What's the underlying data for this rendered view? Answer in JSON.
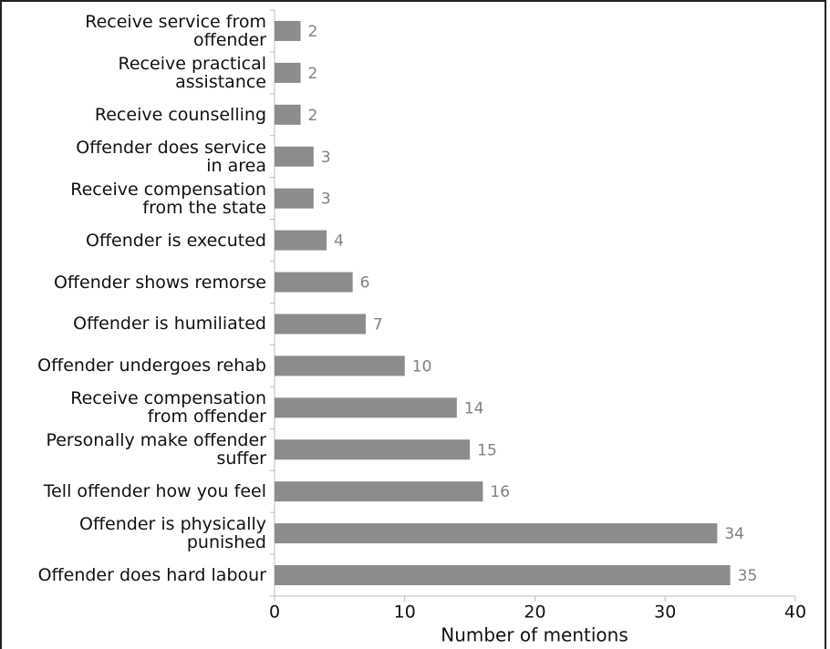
{
  "chart_data": {
    "type": "bar",
    "orientation": "horizontal",
    "categories": [
      "Receive service from\noffender",
      "Receive practical\nassistance",
      "Receive counselling",
      "Offender does service\nin area",
      "Receive compensation\nfrom the state",
      "Offender is executed",
      "Offender shows remorse",
      "Offender is humiliated",
      "Offender undergoes rehab",
      "Receive compensation\nfrom offender",
      "Personally make offender\nsuffer",
      "Tell offender how you feel",
      "Offender is physically\npunished",
      "Offender does hard labour"
    ],
    "values": [
      2,
      2,
      2,
      3,
      3,
      4,
      6,
      7,
      10,
      14,
      15,
      16,
      34,
      35
    ],
    "color": "#8c8c8c",
    "xlabel": "Number of mentions",
    "xlim": [
      0,
      40
    ],
    "xticks": [
      0,
      10,
      20,
      30,
      40
    ]
  }
}
